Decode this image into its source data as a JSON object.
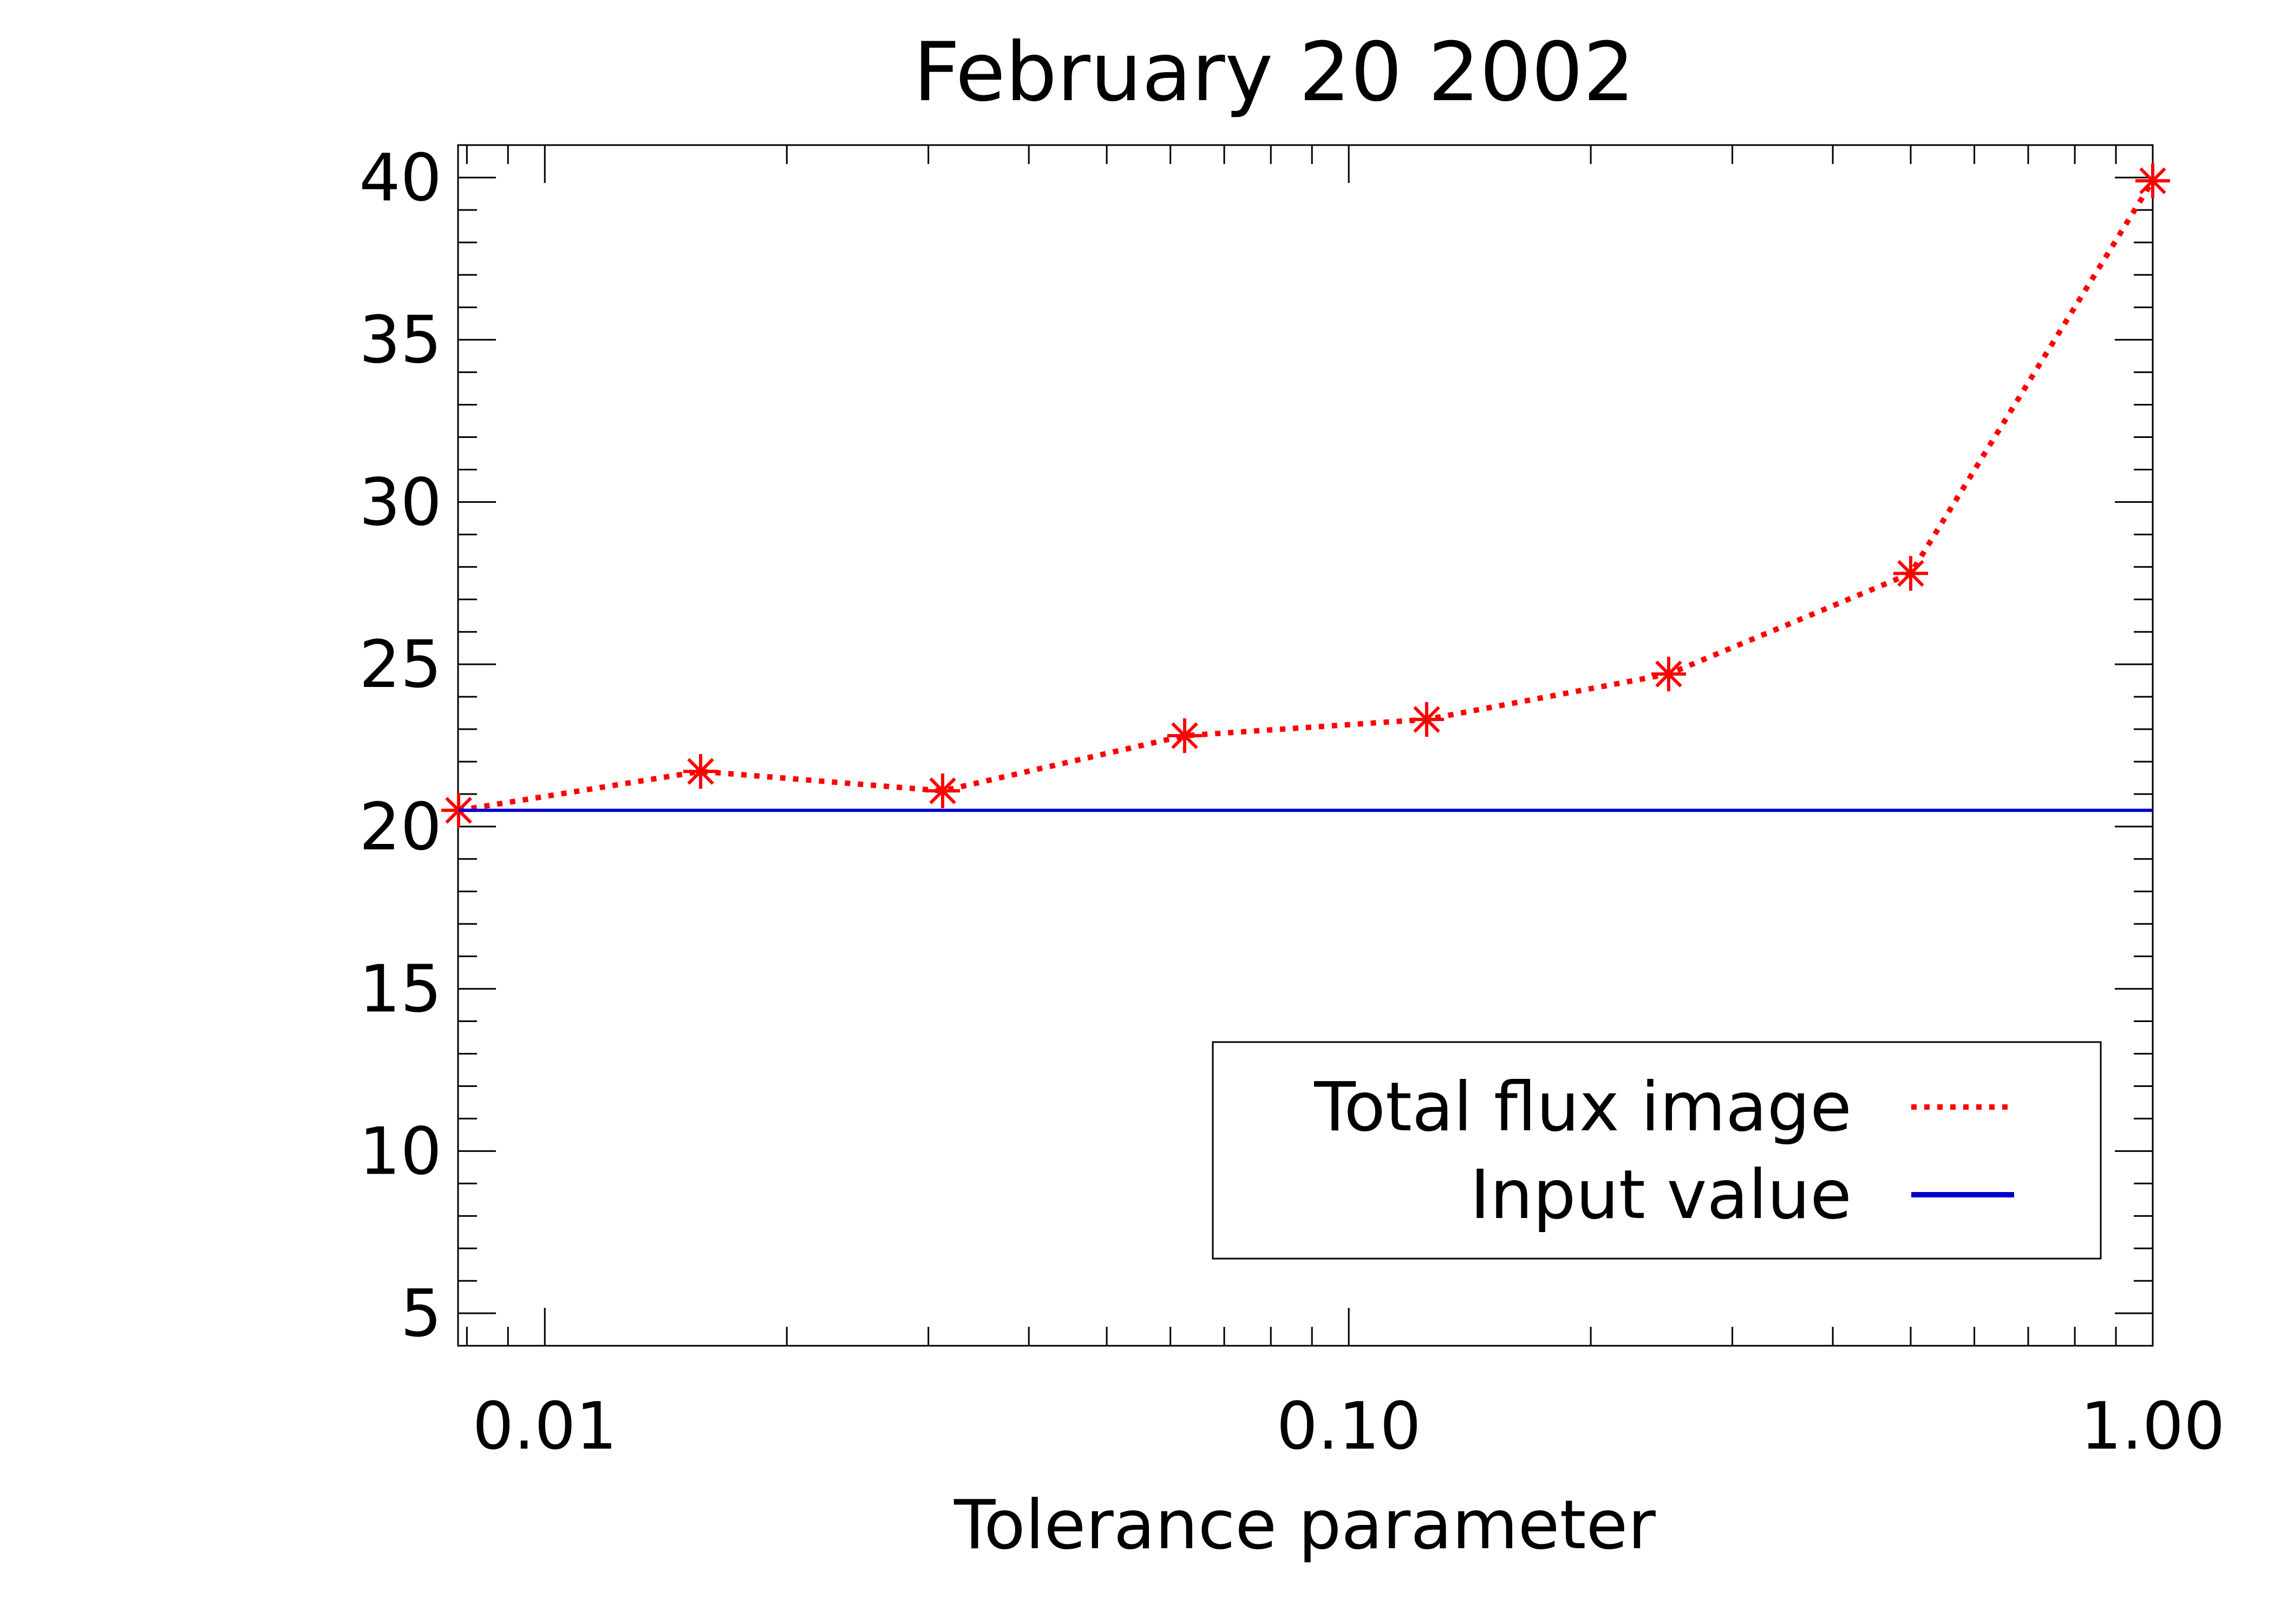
{
  "chart_data": {
    "type": "line",
    "title": "February 20 2002",
    "xlabel": "Tolerance parameter",
    "ylabel": "",
    "xscale": "log",
    "xlim": [
      0.0078,
      1.0
    ],
    "ylim": [
      4,
      41
    ],
    "x_ticks": [
      0.01,
      0.1,
      1.0
    ],
    "x_tick_labels": [
      "0.01",
      "0.10",
      "1.00"
    ],
    "y_ticks": [
      5,
      10,
      15,
      20,
      25,
      30,
      35,
      40
    ],
    "y_tick_labels": [
      "5",
      "10",
      "15",
      "20",
      "25",
      "30",
      "35",
      "40"
    ],
    "grid": false,
    "legend_position": "bottom-right",
    "series": [
      {
        "name": "Total flux image",
        "color": "#ff0000",
        "line_style": "dotted",
        "marker": "asterisk",
        "x": [
          0.0078125,
          0.015625,
          0.03125,
          0.0625,
          0.125,
          0.25,
          0.5,
          1.0
        ],
        "y": [
          20.5,
          21.7,
          21.1,
          22.8,
          23.3,
          24.7,
          27.8,
          39.9
        ]
      },
      {
        "name": "Input value",
        "color": "#0000cc",
        "line_style": "solid",
        "marker": "none",
        "x": [
          0.0078125,
          1.0
        ],
        "y": [
          20.5,
          20.5
        ]
      }
    ]
  }
}
